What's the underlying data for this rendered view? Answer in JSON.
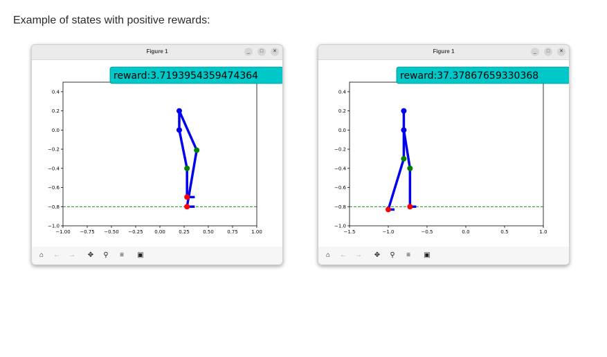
{
  "heading": "Example of states with positive rewards:",
  "figures": [
    {
      "window_title": "Figure 1",
      "toolbar_icons": [
        "home-icon",
        "back-arrow-icon",
        "forward-arrow-icon",
        "pan-icon",
        "zoom-icon",
        "configure-icon",
        "save-icon"
      ],
      "chart_data": {
        "type": "line",
        "xlim": [
          -1.0,
          1.0
        ],
        "ylim": [
          -1.0,
          0.5
        ],
        "xticks": [
          "−1.00",
          "−0.75",
          "−0.50",
          "−0.25",
          "0.00",
          "0.25",
          "0.50",
          "0.75",
          "1.00"
        ],
        "yticks": [
          "−1.0",
          "−0.8",
          "−0.6",
          "−0.4",
          "−0.2",
          "0.0",
          "0.2",
          "0.4"
        ],
        "ground_line_y": -0.8,
        "annotation": "reward:3.7193954359474364",
        "segments": [
          {
            "from": [
              0.2,
              0.2
            ],
            "to": [
              0.2,
              0.0
            ],
            "color": "#0000ee"
          },
          {
            "from": [
              0.2,
              0.2
            ],
            "to": [
              0.38,
              -0.21
            ],
            "color": "#0000ee"
          },
          {
            "from": [
              0.38,
              -0.21
            ],
            "to": [
              0.28,
              -0.8
            ],
            "color": "#0000ee"
          },
          {
            "from": [
              0.2,
              0.0
            ],
            "to": [
              0.28,
              -0.4
            ],
            "color": "#0000ee"
          },
          {
            "from": [
              0.28,
              -0.4
            ],
            "to": [
              0.28,
              -0.7
            ],
            "color": "#0000ee"
          },
          {
            "from": [
              0.28,
              -0.7
            ],
            "to": [
              0.36,
              -0.7
            ],
            "color": "#0000ee"
          },
          {
            "from": [
              0.28,
              -0.8
            ],
            "to": [
              0.36,
              -0.8
            ],
            "color": "#0000ee"
          }
        ],
        "joints": [
          {
            "x": 0.2,
            "y": 0.2,
            "color": "#0000ee"
          },
          {
            "x": 0.2,
            "y": 0.0,
            "color": "#0000ee"
          },
          {
            "x": 0.38,
            "y": -0.21,
            "color": "#008000"
          },
          {
            "x": 0.28,
            "y": -0.4,
            "color": "#008000"
          },
          {
            "x": 0.28,
            "y": -0.7,
            "color": "#ff0000"
          },
          {
            "x": 0.28,
            "y": -0.8,
            "color": "#ff0000"
          }
        ]
      }
    },
    {
      "window_title": "Figure 1",
      "toolbar_icons": [
        "home-icon",
        "back-arrow-icon",
        "forward-arrow-icon",
        "pan-icon",
        "zoom-icon",
        "configure-icon",
        "save-icon"
      ],
      "chart_data": {
        "type": "line",
        "xlim": [
          -1.5,
          1.0
        ],
        "ylim": [
          -1.0,
          0.5
        ],
        "xticks": [
          "−1.5",
          "−1.0",
          "−0.5",
          "0.0",
          "0.5",
          "1.0"
        ],
        "yticks": [
          "−1.0",
          "−0.8",
          "−0.6",
          "−0.4",
          "−0.2",
          "0.0",
          "0.2",
          "0.4"
        ],
        "ground_line_y": -0.8,
        "annotation": "reward:37.37867659330368",
        "segments": [
          {
            "from": [
              -0.8,
              0.2
            ],
            "to": [
              -0.8,
              0.0
            ],
            "color": "#0000ee"
          },
          {
            "from": [
              -0.8,
              0.0
            ],
            "to": [
              -0.8,
              -0.3
            ],
            "color": "#0000ee"
          },
          {
            "from": [
              -0.8,
              0.0
            ],
            "to": [
              -0.72,
              -0.4
            ],
            "color": "#0000ee"
          },
          {
            "from": [
              -0.8,
              -0.3
            ],
            "to": [
              -1.0,
              -0.83
            ],
            "color": "#0000ee"
          },
          {
            "from": [
              -0.72,
              -0.4
            ],
            "to": [
              -0.72,
              -0.8
            ],
            "color": "#0000ee"
          },
          {
            "from": [
              -1.0,
              -0.83
            ],
            "to": [
              -0.92,
              -0.83
            ],
            "color": "#0000ee"
          },
          {
            "from": [
              -0.72,
              -0.8
            ],
            "to": [
              -0.64,
              -0.8
            ],
            "color": "#0000ee"
          }
        ],
        "joints": [
          {
            "x": -0.8,
            "y": 0.2,
            "color": "#0000ee"
          },
          {
            "x": -0.8,
            "y": 0.0,
            "color": "#0000ee"
          },
          {
            "x": -0.8,
            "y": -0.3,
            "color": "#008000"
          },
          {
            "x": -0.72,
            "y": -0.4,
            "color": "#008000"
          },
          {
            "x": -1.0,
            "y": -0.83,
            "color": "#ff0000"
          },
          {
            "x": -0.72,
            "y": -0.8,
            "color": "#ff0000"
          }
        ]
      }
    }
  ]
}
